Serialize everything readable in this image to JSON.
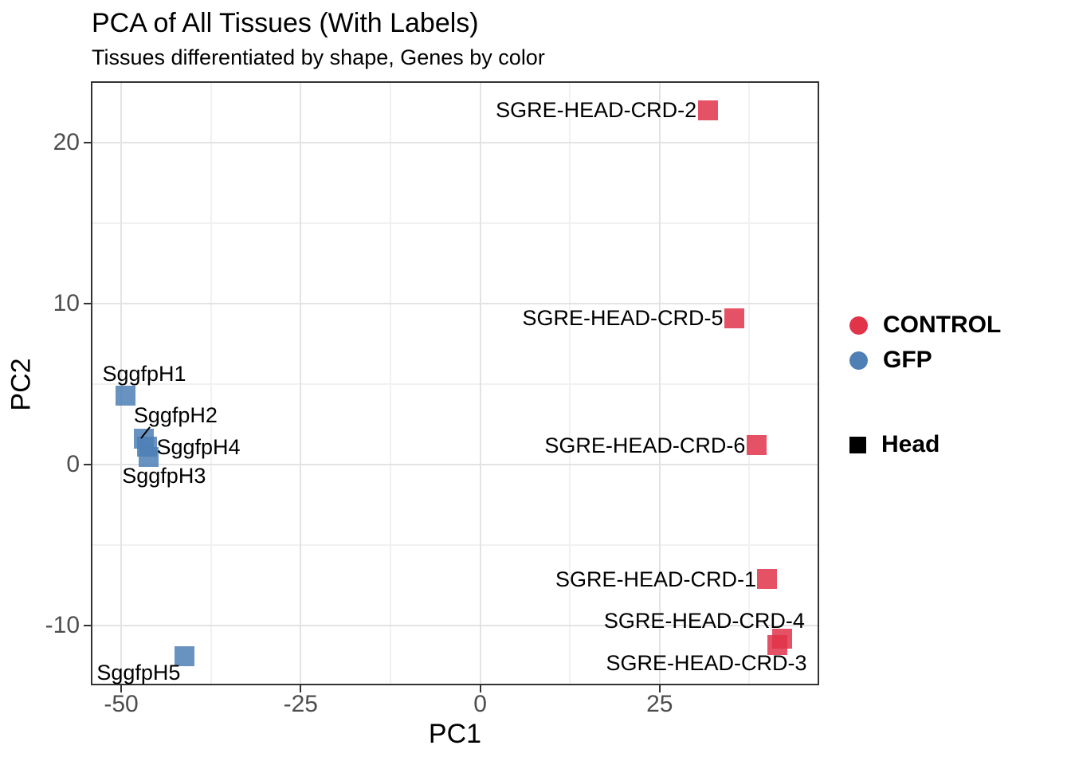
{
  "title": "PCA of All Tissues (With Labels)",
  "subtitle": "Tissues differentiated by shape, Genes by color",
  "axes": {
    "x": {
      "label": "PC1",
      "ticks": [
        -50,
        -25,
        0,
        25
      ],
      "tick_step": 25
    },
    "y": {
      "label": "PC2",
      "ticks": [
        -10,
        0,
        10,
        20
      ],
      "tick_step": 10
    }
  },
  "legend": {
    "color_entries": [
      {
        "label": "CONTROL",
        "color": "#E1344A"
      },
      {
        "label": "GFP",
        "color": "#4E7FB5"
      }
    ],
    "shape_entries": [
      {
        "label": "Head",
        "shape": "square",
        "color": "#000000"
      }
    ]
  },
  "chart_data": {
    "type": "scatter",
    "marker": "square",
    "title": "PCA of All Tissues (With Labels)",
    "subtitle": "Tissues differentiated by shape, Genes by color",
    "xlabel": "PC1",
    "ylabel": "PC2",
    "xlim": [
      -54,
      47
    ],
    "ylim": [
      -13.6,
      23.7
    ],
    "grid": true,
    "legend_position": "right",
    "series": [
      {
        "name": "CONTROL",
        "color": "#E1344A",
        "shape": "Head",
        "points": [
          {
            "label": "SGRE-HEAD-CRD-2",
            "x": 31.7,
            "y": 22.0,
            "label_align": "right",
            "label_dx": -14,
            "label_dy": 0
          },
          {
            "label": "SGRE-HEAD-CRD-5",
            "x": 35.4,
            "y": 9.1,
            "label_align": "right",
            "label_dx": -14,
            "label_dy": 0
          },
          {
            "label": "SGRE-HEAD-CRD-6",
            "x": 38.5,
            "y": 1.2,
            "label_align": "right",
            "label_dx": -14,
            "label_dy": 0
          },
          {
            "label": "SGRE-HEAD-CRD-1",
            "x": 39.9,
            "y": -7.1,
            "label_align": "right",
            "label_dx": -13,
            "label_dy": 0
          },
          {
            "label": "SGRE-HEAD-CRD-4",
            "x": 42.1,
            "y": -10.8,
            "label_align": "right",
            "label_dx": 28,
            "label_dy": -22
          },
          {
            "label": "SGRE-HEAD-CRD-3",
            "x": 41.4,
            "y": -11.2,
            "label_align": "right",
            "label_dx": 37,
            "label_dy": 23
          }
        ]
      },
      {
        "name": "GFP",
        "color": "#4E7FB5",
        "shape": "Head",
        "points": [
          {
            "label": "SggfpH1",
            "x": -49.4,
            "y": 4.3,
            "label_align": "left",
            "label_dx": -29,
            "label_dy": -27
          },
          {
            "label": "SggfpH2",
            "x": -46.8,
            "y": 1.6,
            "label_align": "left",
            "label_dx": -13,
            "label_dy": -30,
            "leader": {
              "dx1": -4,
              "dy1": -1,
              "dx2": 7,
              "dy2": -15
            }
          },
          {
            "label": "SggfpH4",
            "x": -46.4,
            "y": 1.1,
            "label_align": "left",
            "label_dx": 12,
            "label_dy": 0
          },
          {
            "label": "SggfpH3",
            "x": -46.2,
            "y": 0.45,
            "label_align": "left",
            "label_dx": -33,
            "label_dy": 23
          },
          {
            "label": "SggfpH5",
            "x": -41.2,
            "y": -11.9,
            "label_align": "left",
            "label_dx": -110,
            "label_dy": 20
          }
        ]
      }
    ]
  },
  "style": {
    "point_size": 25,
    "point_opacity": 0.85,
    "grid_major": "#e3e3e3",
    "grid_minor": "#f1f1f1",
    "panel_border": "#333333",
    "tick_color": "#333333",
    "tick_label_color": "#4d4d4d"
  }
}
